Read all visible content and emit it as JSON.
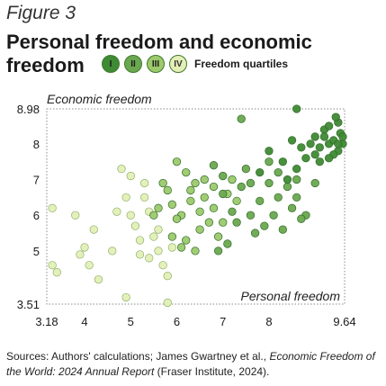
{
  "figure_label": "Figure 3",
  "title_line1": "Personal freedom and economic",
  "title_line2": "freedom",
  "legend": {
    "items": [
      {
        "label": "I",
        "fill": "#3f8a34",
        "text": "#1a1a1a"
      },
      {
        "label": "II",
        "fill": "#6aa84f",
        "text": "#1a1a1a"
      },
      {
        "label": "III",
        "fill": "#9cc96b",
        "text": "#1a1a1a"
      },
      {
        "label": "IV",
        "fill": "#e3efb6",
        "text": "#333333"
      }
    ],
    "text": "Freedom quartiles"
  },
  "source": {
    "prefix": "Sources: Authors' calculations; James Gwartney et al., ",
    "italic": "Economic Freedom of the World: 2024 Annual Report",
    "suffix": " (Fraser Institute, 2024)."
  },
  "chart_data": {
    "type": "scatter",
    "xlabel": "Personal freedom",
    "ylabel": "Economic freedom",
    "xlim": [
      3.18,
      9.64
    ],
    "ylim": [
      3.51,
      8.98
    ],
    "xticks": [
      "3.18",
      "4",
      "5",
      "6",
      "7",
      "8",
      "9.64"
    ],
    "yticks": [
      "8.98",
      "8",
      "7",
      "6",
      "5",
      "3.51"
    ],
    "grid": false,
    "legend_placement": "top",
    "series": [
      {
        "name": "I",
        "color": "#3f8a34",
        "points": [
          [
            8.6,
            8.98
          ],
          [
            8.5,
            8.1
          ],
          [
            8.7,
            7.9
          ],
          [
            8.8,
            7.6
          ],
          [
            8.9,
            8.0
          ],
          [
            9.0,
            8.2
          ],
          [
            9.1,
            7.9
          ],
          [
            9.2,
            8.4
          ],
          [
            9.3,
            8.0
          ],
          [
            9.4,
            8.1
          ],
          [
            9.5,
            7.8
          ],
          [
            9.55,
            8.3
          ],
          [
            9.6,
            8.0
          ],
          [
            9.5,
            8.6
          ],
          [
            9.45,
            8.75
          ],
          [
            9.3,
            8.5
          ],
          [
            9.2,
            8.2
          ],
          [
            9.0,
            7.7
          ],
          [
            8.3,
            7.5
          ],
          [
            8.0,
            7.8
          ],
          [
            7.8,
            7.2
          ],
          [
            9.1,
            7.5
          ],
          [
            8.6,
            7.3
          ],
          [
            9.4,
            7.7
          ],
          [
            8.4,
            7.0
          ],
          [
            9.6,
            8.2
          ],
          [
            9.3,
            7.6
          ],
          [
            9.5,
            8.0
          ]
        ]
      },
      {
        "name": "II",
        "color": "#6aa84f",
        "points": [
          [
            7.4,
            8.7
          ],
          [
            7.5,
            7.3
          ],
          [
            7.6,
            6.9
          ],
          [
            7.8,
            6.4
          ],
          [
            8.0,
            6.9
          ],
          [
            8.2,
            6.5
          ],
          [
            8.4,
            6.8
          ],
          [
            8.5,
            6.2
          ],
          [
            8.6,
            6.5
          ],
          [
            8.8,
            6.0
          ],
          [
            7.2,
            6.1
          ],
          [
            7.0,
            6.6
          ],
          [
            7.3,
            5.8
          ],
          [
            7.6,
            6.0
          ],
          [
            7.9,
            5.7
          ],
          [
            8.1,
            6.0
          ],
          [
            8.3,
            5.6
          ],
          [
            7.1,
            5.2
          ],
          [
            6.9,
            5.0
          ],
          [
            7.7,
            5.5
          ],
          [
            8.0,
            7.5
          ],
          [
            8.2,
            7.2
          ],
          [
            7.4,
            6.8
          ],
          [
            8.7,
            5.9
          ],
          [
            9.0,
            6.9
          ],
          [
            7.0,
            7.1
          ],
          [
            6.8,
            7.4
          ],
          [
            8.6,
            7.0
          ]
        ]
      },
      {
        "name": "III",
        "color": "#9cc96b",
        "points": [
          [
            6.2,
            7.2
          ],
          [
            6.4,
            6.9
          ],
          [
            6.6,
            6.5
          ],
          [
            6.8,
            6.2
          ],
          [
            7.0,
            5.8
          ],
          [
            6.1,
            6.0
          ],
          [
            6.3,
            6.4
          ],
          [
            6.5,
            5.6
          ],
          [
            6.0,
            5.9
          ],
          [
            5.8,
            6.7
          ],
          [
            5.6,
            6.2
          ],
          [
            5.9,
            5.4
          ],
          [
            6.6,
            7.0
          ],
          [
            7.1,
            6.6
          ],
          [
            6.9,
            5.4
          ],
          [
            6.4,
            5.0
          ],
          [
            6.2,
            5.3
          ],
          [
            5.7,
            6.9
          ],
          [
            6.0,
            7.5
          ],
          [
            6.8,
            6.8
          ],
          [
            7.2,
            7.0
          ],
          [
            6.5,
            6.1
          ],
          [
            6.3,
            6.7
          ],
          [
            5.5,
            6.0
          ],
          [
            6.7,
            5.8
          ],
          [
            6.1,
            5.1
          ],
          [
            7.3,
            6.4
          ],
          [
            5.9,
            6.3
          ]
        ]
      },
      {
        "name": "IV",
        "color": "#e3efb6",
        "points": [
          [
            3.3,
            6.2
          ],
          [
            3.3,
            4.6
          ],
          [
            3.4,
            4.4
          ],
          [
            3.9,
            4.9
          ],
          [
            4.1,
            4.6
          ],
          [
            4.3,
            4.2
          ],
          [
            4.0,
            5.1
          ],
          [
            4.2,
            5.6
          ],
          [
            4.6,
            5.0
          ],
          [
            4.8,
            7.3
          ],
          [
            4.9,
            6.5
          ],
          [
            5.0,
            6.0
          ],
          [
            5.1,
            5.7
          ],
          [
            5.2,
            5.3
          ],
          [
            5.2,
            4.9
          ],
          [
            5.3,
            6.5
          ],
          [
            5.4,
            4.8
          ],
          [
            5.5,
            5.4
          ],
          [
            5.6,
            5.6
          ],
          [
            5.7,
            4.6
          ],
          [
            5.8,
            4.3
          ],
          [
            5.9,
            5.1
          ],
          [
            5.8,
            3.55
          ],
          [
            4.9,
            3.7
          ],
          [
            4.7,
            6.1
          ],
          [
            5.0,
            7.1
          ],
          [
            5.3,
            6.9
          ],
          [
            3.8,
            6.0
          ],
          [
            5.6,
            5.0
          ],
          [
            5.4,
            6.1
          ]
        ]
      }
    ]
  }
}
